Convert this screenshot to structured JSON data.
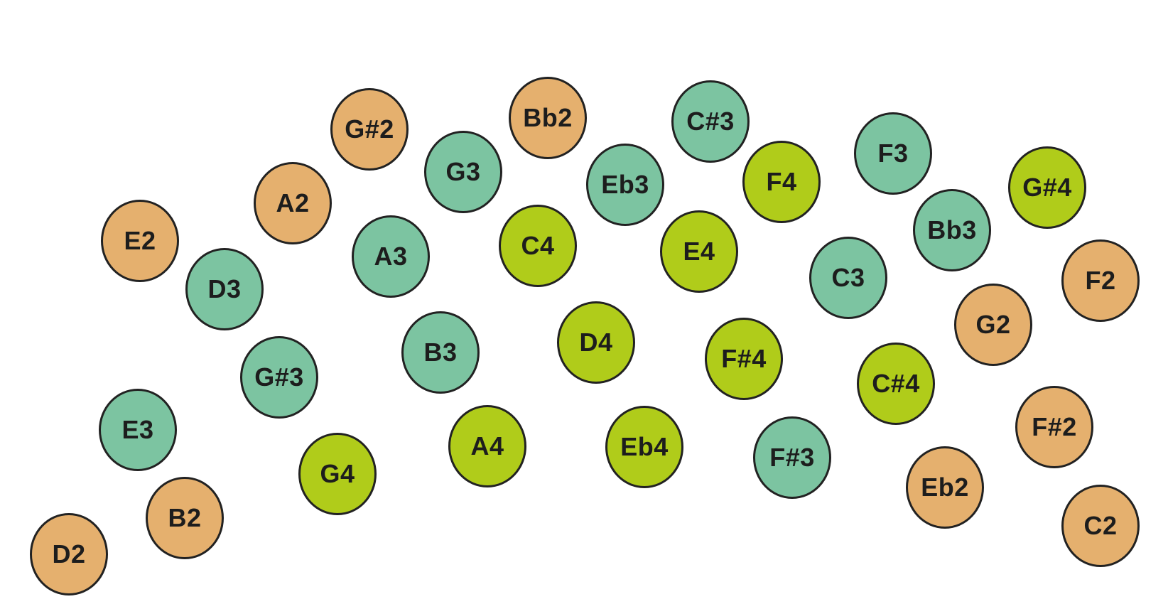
{
  "colors": {
    "orange": "#e5b06e",
    "teal": "#7cc4a1",
    "lime": "#b0cc1a",
    "outline": "#222222",
    "text": "#1d1d1d"
  },
  "notes": [
    {
      "label": "G#2",
      "color": "orange"
    },
    {
      "label": "Bb2",
      "color": "orange"
    },
    {
      "label": "C#3",
      "color": "teal"
    },
    {
      "label": "G3",
      "color": "teal"
    },
    {
      "label": "Eb3",
      "color": "teal"
    },
    {
      "label": "F4",
      "color": "lime"
    },
    {
      "label": "F3",
      "color": "teal"
    },
    {
      "label": "G#4",
      "color": "lime"
    },
    {
      "label": "A2",
      "color": "orange"
    },
    {
      "label": "A3",
      "color": "teal"
    },
    {
      "label": "C4",
      "color": "lime"
    },
    {
      "label": "E4",
      "color": "lime"
    },
    {
      "label": "Bb3",
      "color": "teal"
    },
    {
      "label": "E2",
      "color": "orange"
    },
    {
      "label": "D3",
      "color": "teal"
    },
    {
      "label": "C3",
      "color": "teal"
    },
    {
      "label": "F2",
      "color": "orange"
    },
    {
      "label": "G2",
      "color": "orange"
    },
    {
      "label": "B3",
      "color": "teal"
    },
    {
      "label": "D4",
      "color": "lime"
    },
    {
      "label": "F#4",
      "color": "lime"
    },
    {
      "label": "G#3",
      "color": "teal"
    },
    {
      "label": "C#4",
      "color": "lime"
    },
    {
      "label": "E3",
      "color": "teal"
    },
    {
      "label": "A4",
      "color": "lime"
    },
    {
      "label": "Eb4",
      "color": "lime"
    },
    {
      "label": "F#3",
      "color": "teal"
    },
    {
      "label": "F#2",
      "color": "orange"
    },
    {
      "label": "G4",
      "color": "lime"
    },
    {
      "label": "Eb2",
      "color": "orange"
    },
    {
      "label": "B2",
      "color": "orange"
    },
    {
      "label": "C2",
      "color": "orange"
    },
    {
      "label": "D2",
      "color": "orange"
    }
  ]
}
